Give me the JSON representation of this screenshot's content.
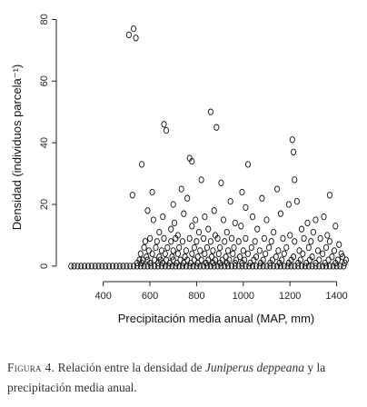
{
  "chart_data": {
    "type": "scatter",
    "xlabel": "Precipitación media anual (MAP, mm)",
    "ylabel": "Densidad (individuos parcela⁻¹)",
    "xlim": [
      230,
      1460
    ],
    "ylim": [
      -1.5,
      81
    ],
    "x_ticks": [
      400,
      600,
      800,
      1000,
      1200,
      1400
    ],
    "y_ticks": [
      0,
      20,
      40,
      60,
      80
    ],
    "marker": "open-circle",
    "grid": false,
    "points": {
      "x": [
        510,
        530,
        540,
        565,
        660,
        670,
        770,
        780,
        860,
        885,
        1020,
        1210,
        1215,
        1220,
        525,
        610,
        735,
        760,
        820,
        905,
        995,
        1080,
        1145,
        1230,
        1370,
        590,
        700,
        945,
        1010,
        1195,
        615,
        655,
        705,
        745,
        795,
        835,
        875,
        915,
        965,
        1040,
        1100,
        1160,
        1275,
        1310,
        1345,
        1395,
        640,
        690,
        720,
        780,
        810,
        850,
        880,
        930,
        990,
        1060,
        1130,
        1200,
        1250,
        1300,
        1360,
        580,
        600,
        630,
        660,
        690,
        710,
        740,
        770,
        800,
        830,
        860,
        890,
        920,
        950,
        980,
        1010,
        1050,
        1090,
        1120,
        1170,
        1220,
        1260,
        1290,
        1330,
        1370,
        1410,
        575,
        595,
        625,
        650,
        675,
        700,
        725,
        755,
        790,
        815,
        845,
        870,
        900,
        935,
        960,
        1000,
        1035,
        1070,
        1110,
        1150,
        1185,
        1240,
        1280,
        1320,
        1355,
        1390,
        1420,
        560,
        585,
        610,
        640,
        665,
        695,
        720,
        750,
        780,
        805,
        835,
        865,
        895,
        925,
        955,
        985,
        1020,
        1055,
        1095,
        1140,
        1175,
        1215,
        1255,
        1295,
        1340,
        1380,
        1425,
        555,
        570,
        590,
        620,
        645,
        670,
        700,
        730,
        760,
        790,
        820,
        850,
        880,
        910,
        940,
        970,
        1005,
        1045,
        1085,
        1125,
        1165,
        1205,
        1245,
        1285,
        1325,
        1365,
        1405,
        1440,
        545,
        565,
        600,
        635,
        655,
        685,
        715,
        745,
        775,
        805,
        840,
        870,
        900,
        930,
        965,
        995,
        1030,
        1075,
        1115,
        1155,
        1195,
        1235,
        1270,
        1310,
        1350,
        1395,
        1435,
        262,
        275,
        290,
        305,
        320,
        335,
        350,
        365,
        380,
        395,
        410,
        425,
        440,
        455,
        470,
        485,
        500,
        515,
        530,
        545,
        560,
        575,
        590,
        605,
        620,
        635,
        650,
        665,
        680,
        695,
        710,
        725,
        740,
        755,
        770,
        785,
        800,
        815,
        830,
        845,
        860,
        875,
        890,
        905,
        920,
        935,
        950,
        965,
        980,
        995,
        1010,
        1025,
        1040,
        1055,
        1070,
        1085,
        1100,
        1115,
        1130,
        1145,
        1160,
        1175,
        1190,
        1205,
        1220,
        1235,
        1250,
        1265,
        1280,
        1295,
        1310,
        1325,
        1340,
        1355,
        1370,
        1385,
        1400,
        1415,
        1430
      ],
      "y": [
        75,
        77,
        74,
        33,
        46,
        44,
        35,
        34,
        50,
        45,
        33,
        41,
        37,
        28,
        23,
        24,
        25,
        22,
        28,
        27,
        24,
        22,
        25,
        21,
        23,
        18,
        20,
        21,
        19,
        20,
        15,
        16,
        14,
        17,
        15,
        16,
        18,
        15,
        14,
        16,
        15,
        17,
        14,
        15,
        16,
        13,
        11,
        12,
        10,
        13,
        11,
        12,
        10,
        11,
        13,
        12,
        11,
        10,
        12,
        11,
        10,
        8,
        9,
        8,
        9,
        8,
        9,
        8,
        9,
        8,
        9,
        8,
        9,
        8,
        9,
        8,
        9,
        8,
        9,
        8,
        9,
        8,
        9,
        8,
        9,
        8,
        7,
        6,
        5,
        6,
        5,
        6,
        5,
        6,
        5,
        6,
        5,
        6,
        5,
        6,
        5,
        6,
        5,
        6,
        5,
        6,
        5,
        6,
        5,
        6,
        5,
        6,
        5,
        4,
        4,
        3,
        4,
        3,
        4,
        3,
        4,
        3,
        4,
        3,
        4,
        3,
        4,
        3,
        4,
        3,
        4,
        3,
        4,
        3,
        4,
        3,
        4,
        3,
        4,
        3,
        3,
        2,
        2,
        2,
        2,
        2,
        2,
        2,
        2,
        2,
        2,
        2,
        2,
        2,
        2,
        2,
        2,
        2,
        2,
        2,
        2,
        2,
        2,
        2,
        2,
        2,
        2,
        2,
        2,
        1,
        1,
        1,
        1,
        1,
        1,
        1,
        1,
        1,
        1,
        1,
        1,
        1,
        1,
        1,
        1,
        1,
        1,
        1,
        1,
        1,
        1,
        1,
        1,
        1,
        1,
        1,
        0,
        0,
        0,
        0,
        0,
        0,
        0,
        0,
        0,
        0,
        0,
        0,
        0,
        0,
        0,
        0,
        0,
        0,
        0,
        0,
        0,
        0,
        0,
        0,
        0,
        0,
        0,
        0,
        0,
        0,
        0,
        0,
        0,
        0,
        0,
        0,
        0,
        0,
        0,
        0,
        0,
        0,
        0,
        0,
        0,
        0,
        0,
        0,
        0,
        0,
        0,
        0,
        0,
        0,
        0,
        0,
        0,
        0,
        0,
        0,
        0,
        0,
        0,
        0,
        0,
        0,
        0,
        0,
        0,
        0,
        0,
        0,
        0,
        0,
        0,
        0,
        0,
        0,
        0
      ]
    }
  },
  "caption": {
    "figure_label": "Figura 4.",
    "text_before": " Relación entre la densidad de ",
    "species": "Juniperus deppeana",
    "text_after": " y la precipitación media anual."
  }
}
